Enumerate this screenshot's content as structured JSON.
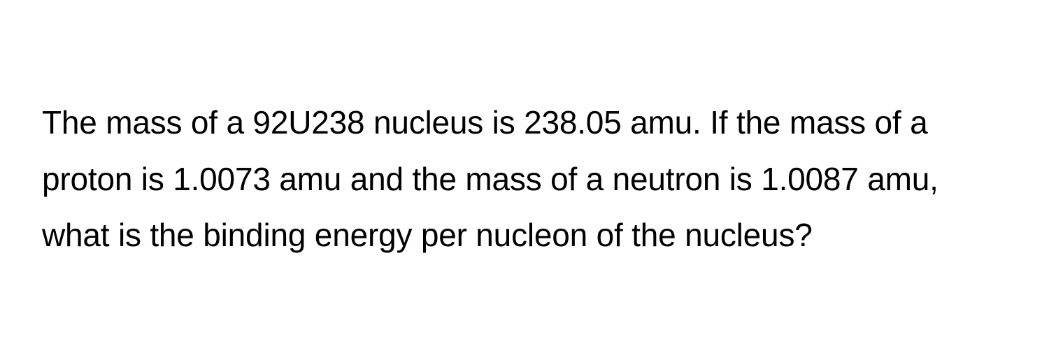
{
  "question": {
    "text": "The mass of a 92U238 nucleus is 238.05 amu. If the mass of a proton is 1.0073 amu and the mass of a neutron is 1.0087 amu, what is the binding energy per nucleon of the nucleus?",
    "font_size": 46,
    "line_height": 1.75,
    "text_color": "#000000",
    "background_color": "#ffffff"
  }
}
